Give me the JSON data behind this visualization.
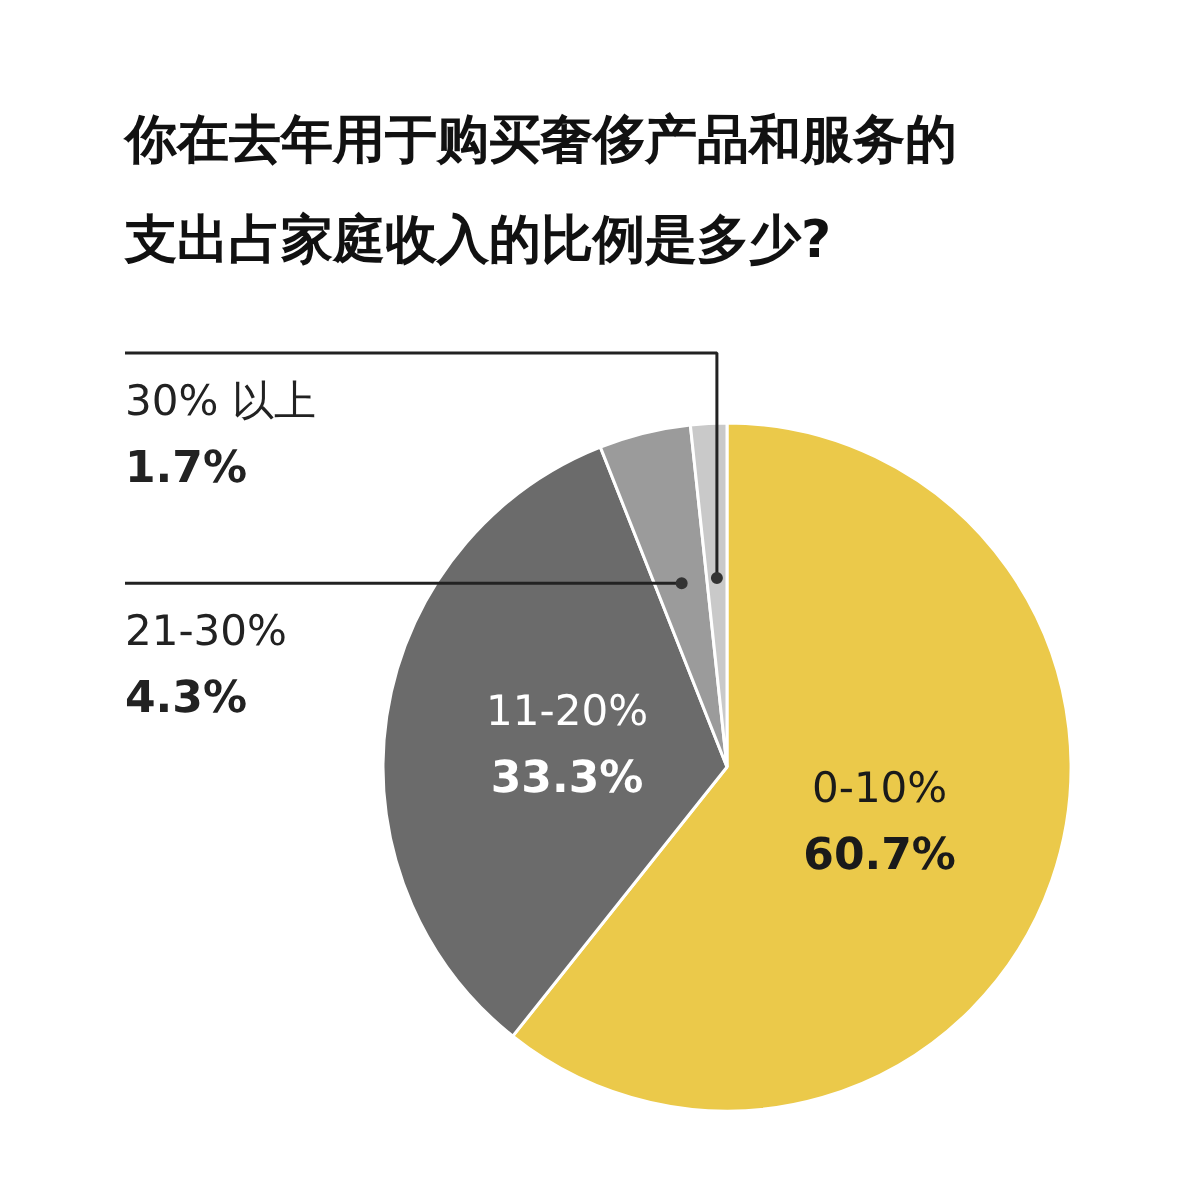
{
  "chart_data": {
    "type": "pie",
    "title": "你在去年用于购买奢侈产品和服务的支出占家庭收入的比例是多少?",
    "categories": [
      "0-10%",
      "11-20%",
      "21-30%",
      "30% 以上"
    ],
    "values": [
      60.7,
      33.3,
      4.3,
      1.7
    ],
    "value_labels": [
      "60.7%",
      "33.3%",
      "4.3%",
      "1.7%"
    ],
    "colors": [
      "#ebc94a",
      "#6b6b6b",
      "#9b9b9b",
      "#c9c9c9"
    ]
  }
}
